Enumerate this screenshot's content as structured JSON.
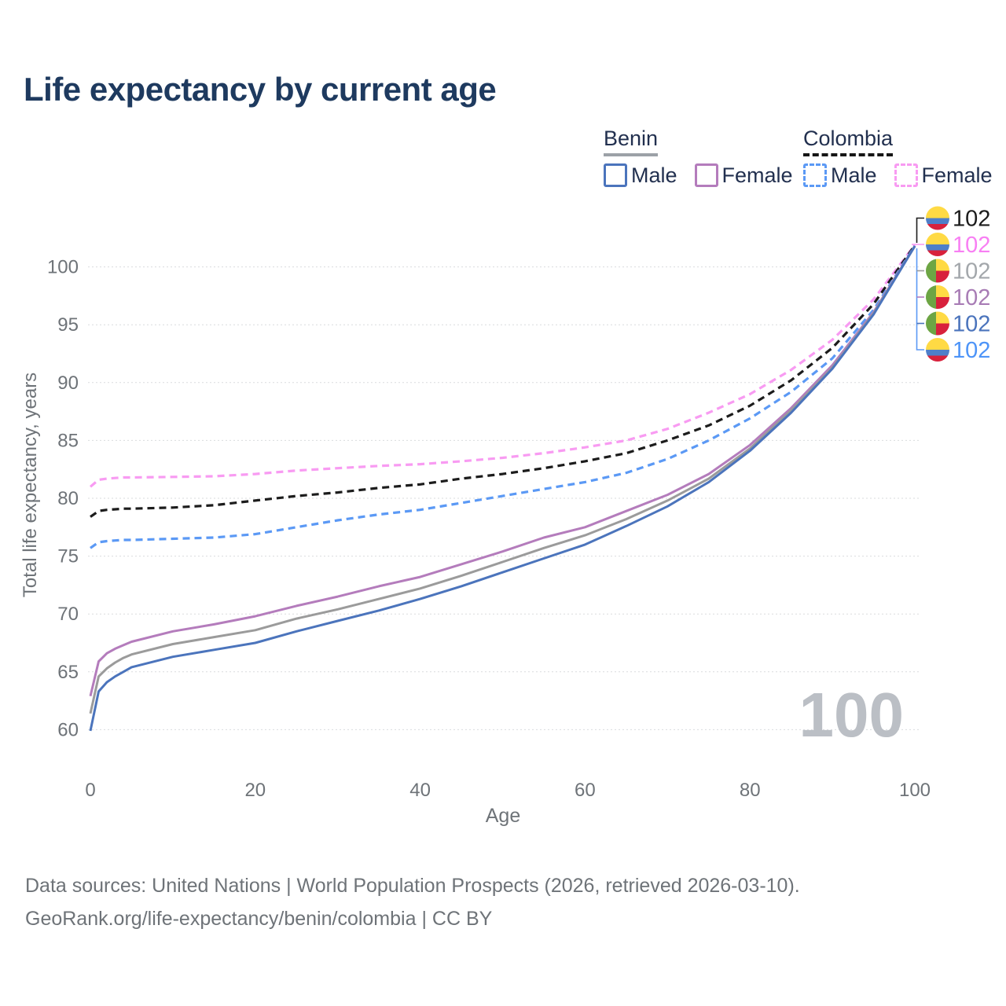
{
  "title": "Life expectancy by current age",
  "watermark": "100",
  "footer": {
    "line1": "Data sources: United Nations | World Population Prospects (2026, retrieved 2026-03-10).",
    "line2": "GeoRank.org/life-expectancy/benin/colombia | CC BY"
  },
  "legend": {
    "groups": [
      {
        "name": "Benin",
        "style": "solid",
        "underline_color": "#9CA1A7",
        "items": [
          {
            "label": "Male",
            "color": "#4B74BC"
          },
          {
            "label": "Female",
            "color": "#B47CBC"
          }
        ]
      },
      {
        "name": "Colombia",
        "style": "dashed",
        "underline_color": "#161616",
        "items": [
          {
            "label": "Male",
            "color": "#5B99F5"
          },
          {
            "label": "Female",
            "color": "#F89BF2"
          }
        ]
      }
    ]
  },
  "chart_data": {
    "type": "line",
    "title": "Life expectancy by current age",
    "xlabel": "Age",
    "ylabel": "Total life expectancy, years",
    "x_ticks": [
      0,
      20,
      40,
      60,
      80,
      100
    ],
    "y_ticks": [
      60,
      65,
      70,
      75,
      80,
      85,
      90,
      95,
      100
    ],
    "xlim": [
      0,
      102
    ],
    "ylim": [
      58.5,
      103.5
    ],
    "grid": "horizontal-dashed",
    "legend_position": "top-right",
    "ages": [
      0,
      1,
      2,
      3,
      4,
      5,
      10,
      15,
      20,
      25,
      30,
      35,
      40,
      45,
      50,
      55,
      60,
      65,
      70,
      75,
      80,
      85,
      90,
      95,
      100
    ],
    "series": [
      {
        "name": "Colombia Female",
        "country": "Colombia",
        "sex": "female",
        "color": "#F89BF2",
        "dash": true,
        "values": [
          81.0,
          81.6,
          81.7,
          81.75,
          81.8,
          81.8,
          81.85,
          81.9,
          82.1,
          82.4,
          82.6,
          82.8,
          82.95,
          83.2,
          83.5,
          83.9,
          84.4,
          85.0,
          86.0,
          87.4,
          89.0,
          91.1,
          93.7,
          97.2,
          101.9
        ]
      },
      {
        "name": "Colombia Both sexes",
        "country": "Colombia",
        "sex": "total",
        "color": "#1C1C1C",
        "dash": true,
        "values": [
          78.4,
          78.9,
          79.0,
          79.05,
          79.1,
          79.1,
          79.2,
          79.4,
          79.8,
          80.2,
          80.5,
          80.9,
          81.2,
          81.7,
          82.1,
          82.6,
          83.2,
          83.9,
          85.0,
          86.3,
          88.0,
          90.2,
          93.0,
          96.8,
          101.88
        ]
      },
      {
        "name": "Colombia Male",
        "country": "Colombia",
        "sex": "male",
        "color": "#5B99F5",
        "dash": true,
        "values": [
          75.7,
          76.2,
          76.3,
          76.35,
          76.4,
          76.4,
          76.5,
          76.6,
          76.9,
          77.5,
          78.1,
          78.6,
          79.0,
          79.6,
          80.2,
          80.8,
          81.4,
          82.2,
          83.4,
          85.0,
          86.9,
          89.2,
          92.1,
          96.3,
          101.82
        ]
      },
      {
        "name": "Benin Female",
        "country": "Benin",
        "sex": "female",
        "color": "#B47CBC",
        "dash": false,
        "values": [
          62.9,
          65.9,
          66.6,
          67.0,
          67.3,
          67.6,
          68.5,
          69.1,
          69.8,
          70.7,
          71.5,
          72.4,
          73.2,
          74.3,
          75.4,
          76.6,
          77.5,
          78.9,
          80.3,
          82.1,
          84.6,
          87.8,
          91.5,
          96.1,
          101.8
        ]
      },
      {
        "name": "Benin Both sexes",
        "country": "Benin",
        "sex": "total",
        "color": "#9B9B9B",
        "dash": false,
        "values": [
          61.4,
          64.6,
          65.3,
          65.8,
          66.2,
          66.5,
          67.4,
          68.0,
          68.6,
          69.6,
          70.4,
          71.3,
          72.2,
          73.3,
          74.5,
          75.7,
          76.8,
          78.2,
          79.8,
          81.7,
          84.3,
          87.6,
          91.3,
          96.0,
          101.8
        ]
      },
      {
        "name": "Benin Male",
        "country": "Benin",
        "sex": "male",
        "color": "#4B74BC",
        "dash": false,
        "values": [
          59.9,
          63.3,
          64.1,
          64.6,
          65.0,
          65.4,
          66.3,
          66.9,
          67.5,
          68.5,
          69.4,
          70.3,
          71.3,
          72.4,
          73.6,
          74.8,
          76.0,
          77.6,
          79.3,
          81.4,
          84.1,
          87.4,
          91.2,
          95.9,
          101.8
        ]
      }
    ],
    "end_labels": [
      {
        "text": "102",
        "flag": "colombia",
        "color": "#1C1C1C",
        "series": "Colombia Both sexes"
      },
      {
        "text": "102",
        "flag": "colombia",
        "color": "#F87FF3",
        "series": "Colombia Female"
      },
      {
        "text": "102",
        "flag": "benin",
        "color": "#A3A7AB",
        "series": "Benin Both sexes"
      },
      {
        "text": "102",
        "flag": "benin",
        "color": "#A87CB5",
        "series": "Benin Female"
      },
      {
        "text": "102",
        "flag": "benin",
        "color": "#4B74BC",
        "series": "Benin Male"
      },
      {
        "text": "102",
        "flag": "colombia",
        "color": "#4D94F8",
        "series": "Colombia Male"
      }
    ],
    "flag_colors": {
      "colombia": {
        "yellow": "#FFDA44",
        "blue": "#4E7FC9",
        "red": "#D8213C"
      },
      "benin": {
        "green": "#6DA544",
        "yellow": "#FFDA44",
        "red": "#D8213C"
      }
    },
    "axis_text_color": "#6E7378",
    "gridline_color": "#D9DBDE"
  }
}
